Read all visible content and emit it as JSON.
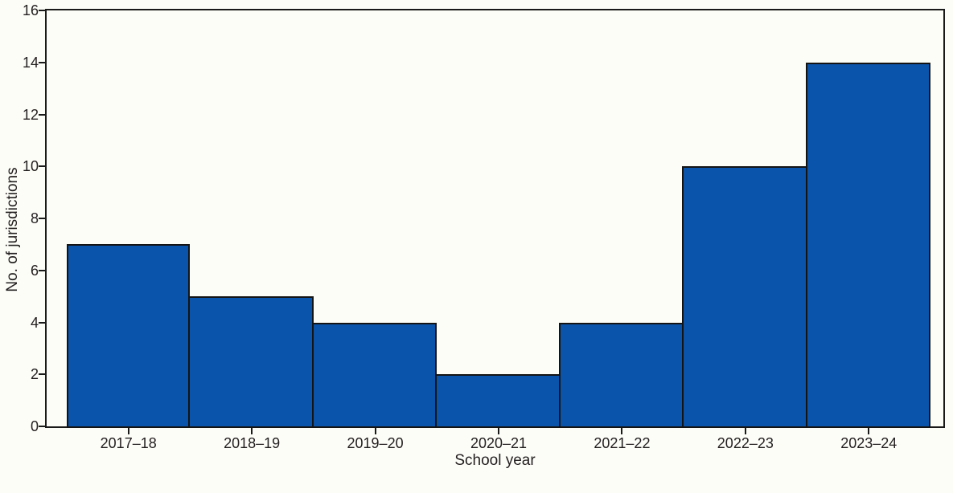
{
  "chart_data": {
    "type": "bar",
    "title": "",
    "categories": [
      "2017–18",
      "2018–19",
      "2019–20",
      "2020–21",
      "2021–22",
      "2022–23",
      "2023–24"
    ],
    "values": [
      7,
      5,
      4,
      2,
      4,
      10,
      14
    ],
    "xlabel": "School year",
    "ylabel": "No. of jurisdictions",
    "ylim": [
      0,
      16
    ],
    "yticks": [
      0,
      2,
      4,
      6,
      8,
      10,
      12,
      14,
      16
    ],
    "grid": false,
    "legend": null,
    "bars_touching": true,
    "colors": {
      "bar_fill": "#0A54AC",
      "bar_border": "#141414",
      "axis": "#1A1A1A",
      "text": "#231F20",
      "background": "#FDFDF8"
    }
  }
}
